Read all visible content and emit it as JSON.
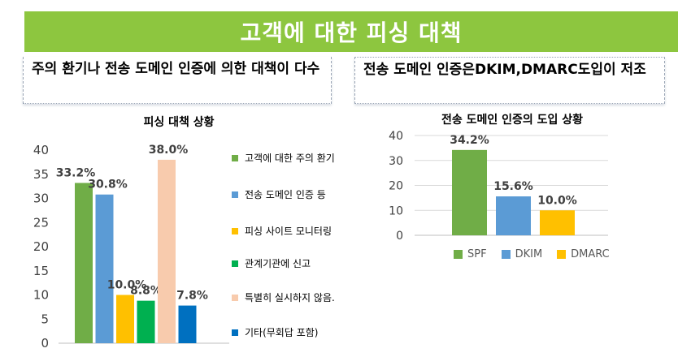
{
  "banner": {
    "title": "고객에 대한 피싱 대책"
  },
  "notes": {
    "left": "주의 환기나 전송 도메인 인증에 의한 대책이 다수",
    "right": "전송 도메인 인증은DKIM,DMARC도입이 저조"
  },
  "chart_data": [
    {
      "type": "bar",
      "title": "피싱 대책 상황",
      "categories": [
        "고객에 대한 주의 환기",
        "전송 도메인 인증 등",
        "피싱 사이트 모니터링",
        "관계기관에 신고",
        "특별히 실시하지 않음.",
        "기타(무회답 포함)"
      ],
      "values": [
        33.2,
        30.8,
        10.0,
        8.8,
        38.0,
        7.8
      ],
      "value_labels": [
        "33.2%",
        "30.8%",
        "10.0%",
        "8.8%",
        "38.0%",
        "7.8%"
      ],
      "colors": [
        "#70ad47",
        "#5b9bd5",
        "#ffc000",
        "#00b050",
        "#f8cbad",
        "#0070c0"
      ],
      "yticks": [
        "0",
        "5",
        "10",
        "15",
        "20",
        "25",
        "30",
        "35",
        "40"
      ],
      "ylim": [
        0,
        40
      ],
      "legend": "right"
    },
    {
      "type": "bar",
      "title": "전송 도메인 인증의 도입 상황",
      "categories": [
        "SPF",
        "DKIM",
        "DMARC"
      ],
      "values": [
        34.2,
        15.6,
        10.0
      ],
      "value_labels": [
        "34.2%",
        "15.6%",
        "10.0%"
      ],
      "colors": [
        "#70ad47",
        "#5b9bd5",
        "#ffc000"
      ],
      "yticks": [
        "0",
        "10",
        "20",
        "30",
        "40"
      ],
      "ylim": [
        0,
        40
      ],
      "legend": "bottom"
    }
  ]
}
